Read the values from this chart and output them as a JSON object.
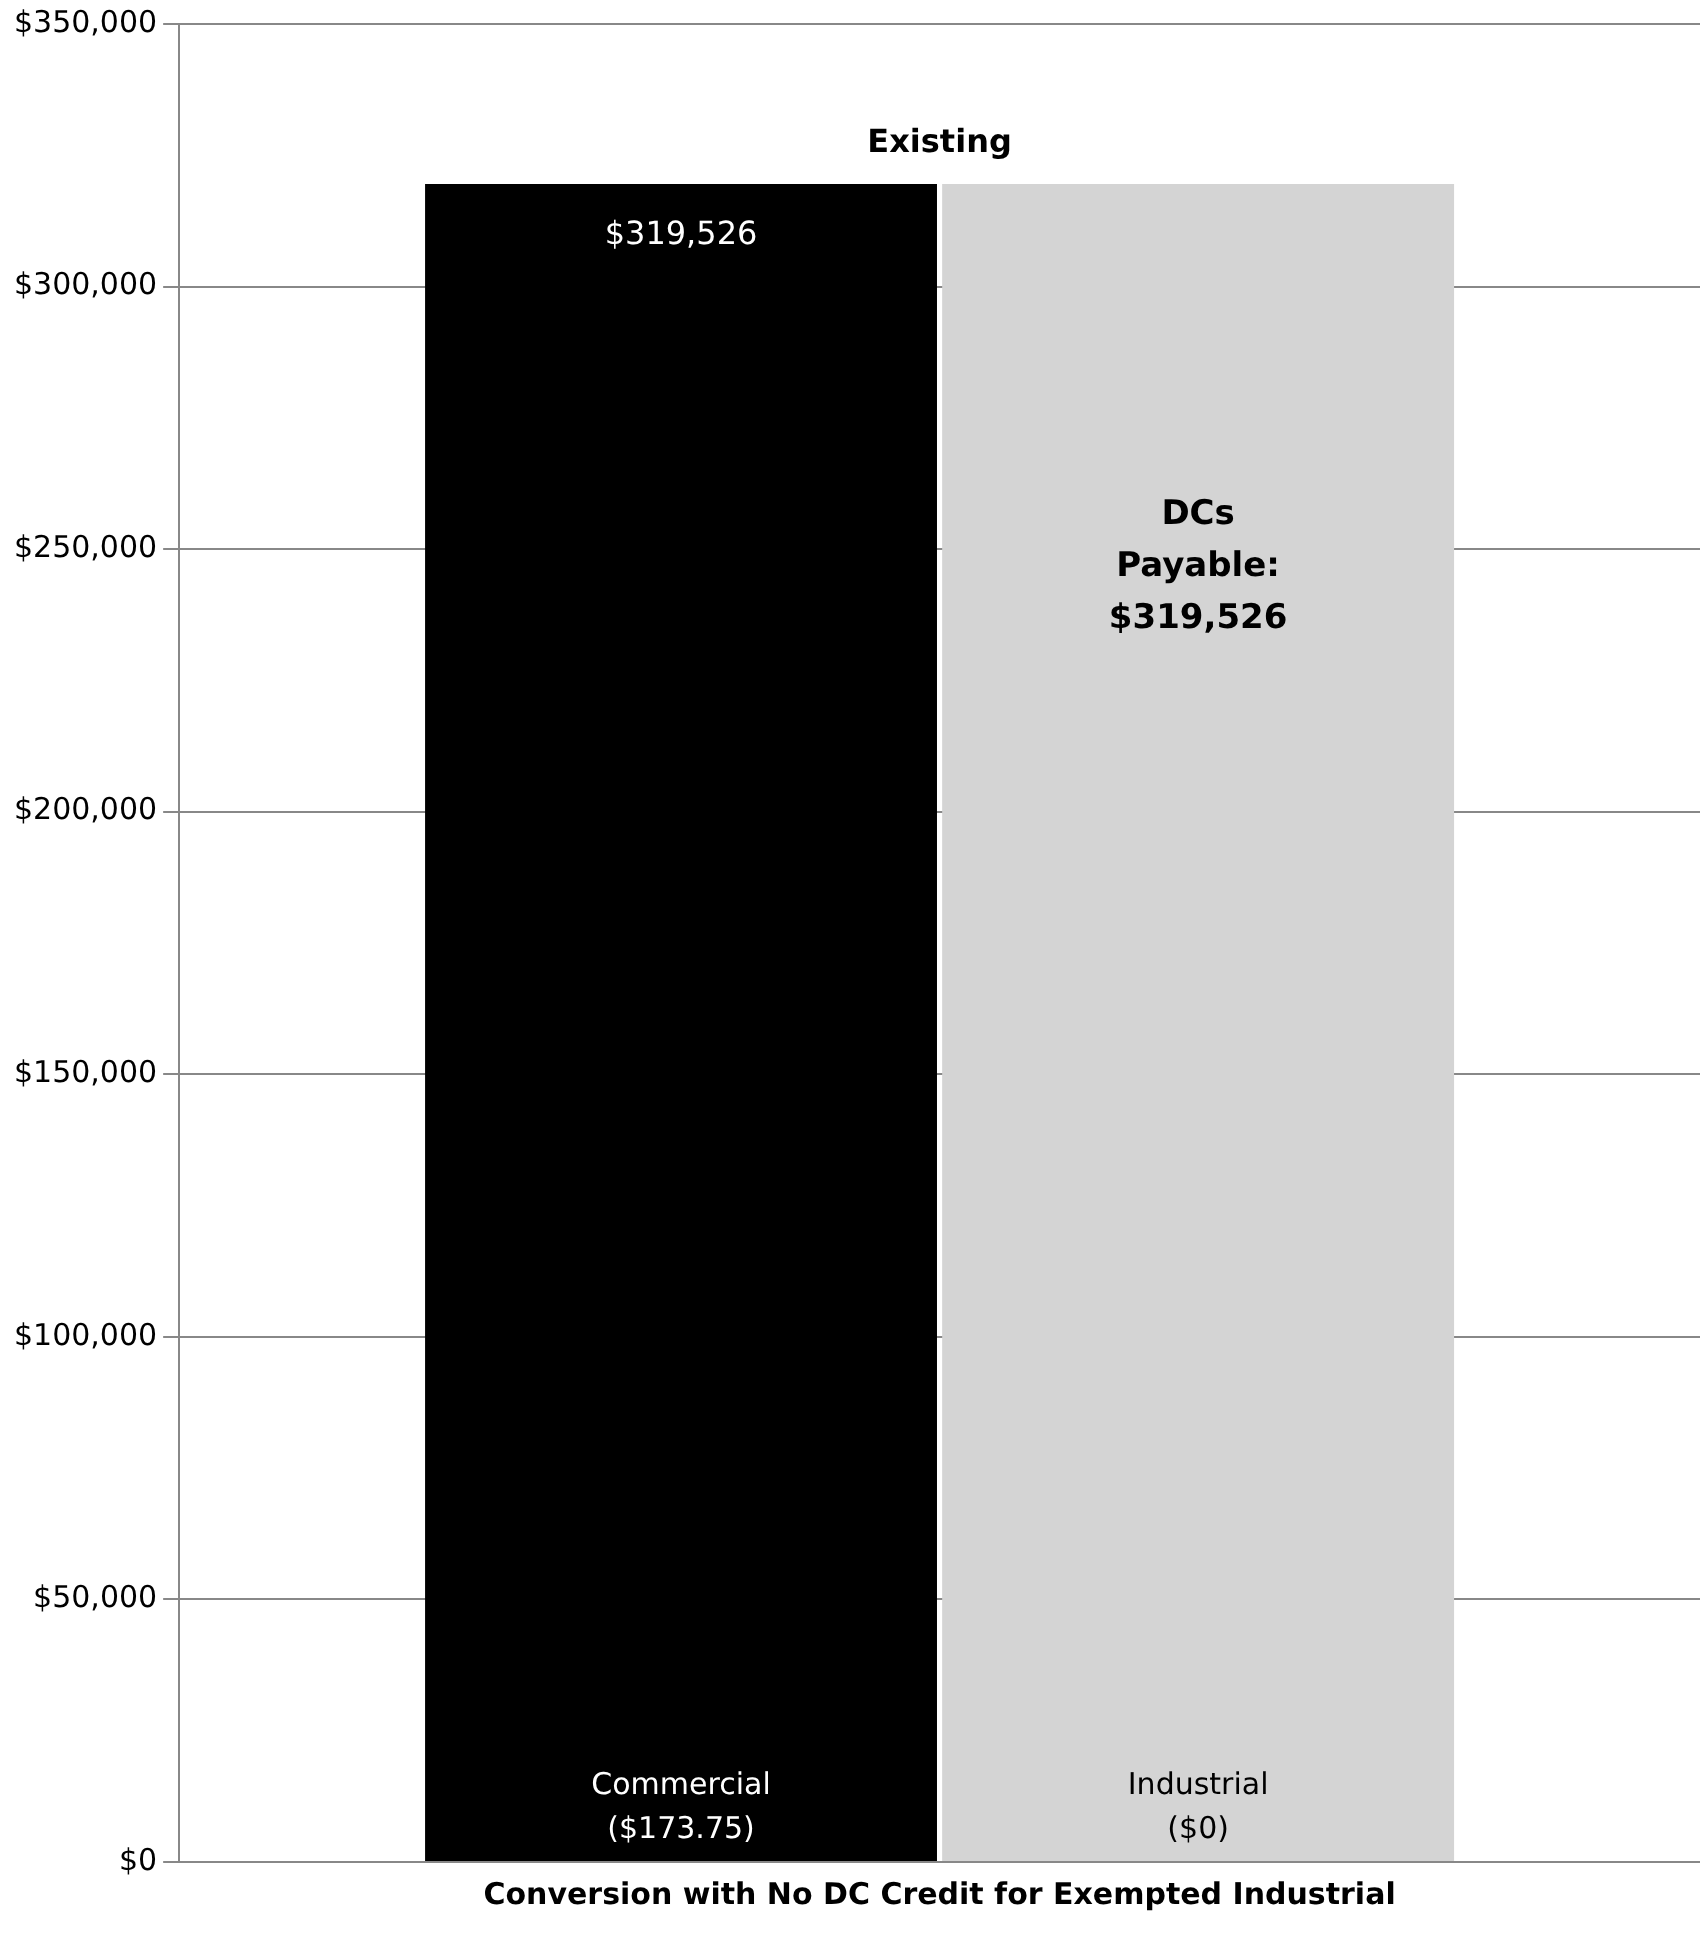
{
  "chart_data": {
    "type": "bar",
    "categories": [
      "Conversion with No DC Credit for Exempted Industrial"
    ],
    "series": [
      {
        "name": "Commercial ($173.75)",
        "color": "#000000",
        "values": [
          319526
        ],
        "value_labels": [
          "$319,526"
        ]
      },
      {
        "name": "Industrial ($0)",
        "color": "#d4d4d4",
        "values": [
          319526
        ],
        "value_labels": [
          "DCs Payable: $319,526"
        ]
      }
    ],
    "annotations": [
      "Existing"
    ],
    "ylim": [
      0,
      350000
    ],
    "yticks": [
      {
        "value": 0,
        "label": "$0"
      },
      {
        "value": 50000,
        "label": "$50,000"
      },
      {
        "value": 100000,
        "label": "$100,000"
      },
      {
        "value": 150000,
        "label": "$150,000"
      },
      {
        "value": 200000,
        "label": "$200,000"
      },
      {
        "value": 250000,
        "label": "$250,000"
      },
      {
        "value": 300000,
        "label": "$300,000"
      },
      {
        "value": 350000,
        "label": "$350,000"
      }
    ],
    "grid": "y",
    "legend": false
  }
}
